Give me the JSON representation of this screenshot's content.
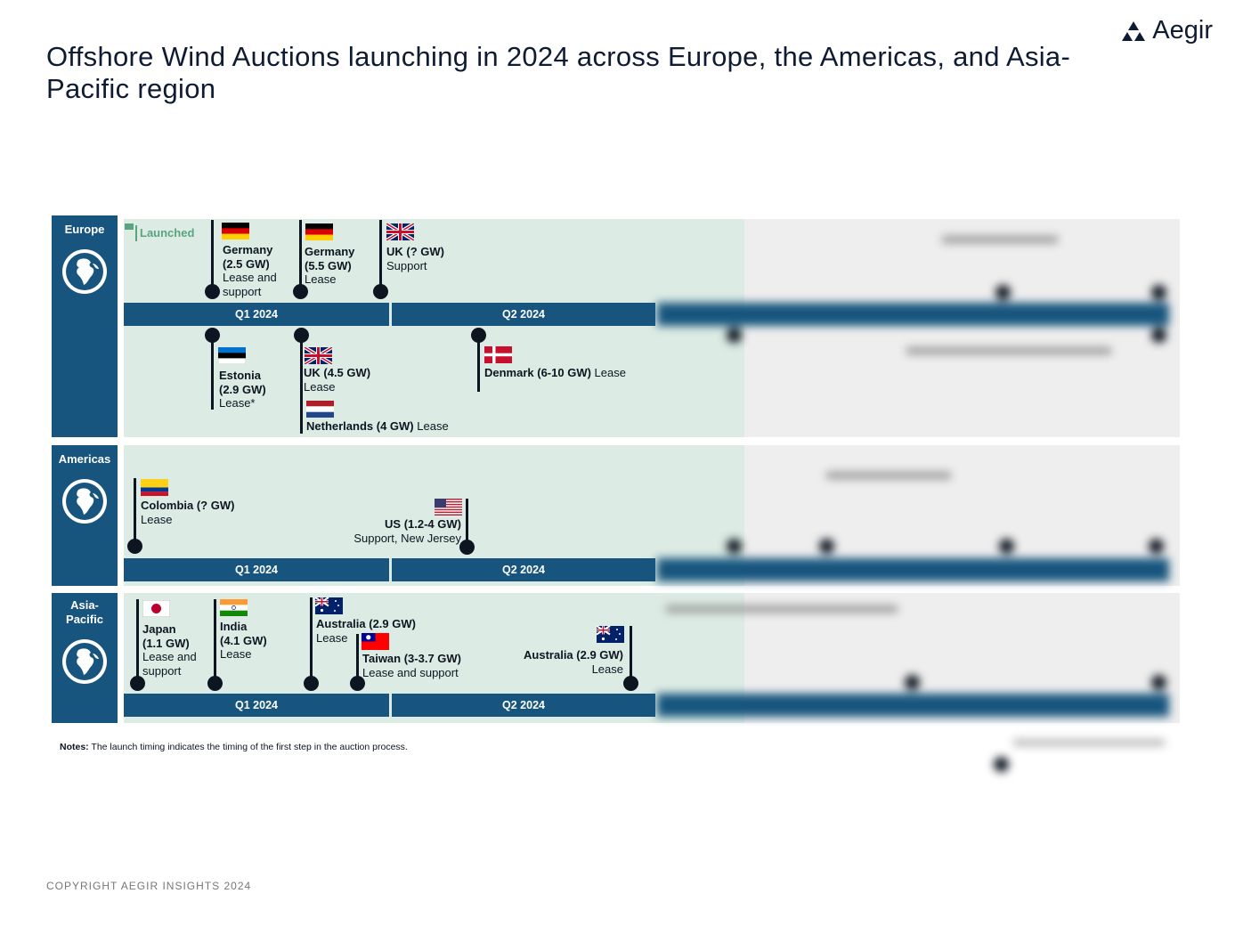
{
  "title": "Offshore Wind Auctions launching in 2024 across Europe, the Americas, and Asia-Pacific region",
  "logo": "Aegir",
  "legend": {
    "launched": "Launched",
    "color": "#5aa57f"
  },
  "colors": {
    "navy": "#17557e",
    "panel": "#dcebe4",
    "pin": "#0d1520"
  },
  "regions": {
    "europe": {
      "label": "Europe",
      "q1": "Q1 2024",
      "q2": "Q2 2024",
      "events": [
        {
          "flag": "germany",
          "name": "Germany",
          "cap": "(2.5 GW)",
          "type": "Lease and support"
        },
        {
          "flag": "germany",
          "name": "Germany",
          "cap": "(5.5 GW)",
          "type": "Lease"
        },
        {
          "flag": "uk",
          "name": "UK (? GW)",
          "type": "Support"
        },
        {
          "flag": "estonia",
          "name": "Estonia",
          "cap": "(2.9 GW)",
          "type": "Lease*"
        },
        {
          "flag": "uk",
          "name": "UK (4.5 GW)",
          "type": "Lease"
        },
        {
          "flag": "netherlands",
          "name": "Netherlands (4 GW)",
          "type": "Lease"
        },
        {
          "flag": "denmark",
          "name": "Denmark (6-10 GW)",
          "type": "Lease"
        }
      ]
    },
    "americas": {
      "label": "Americas",
      "q1": "Q1 2024",
      "q2": "Q2 2024",
      "events": [
        {
          "flag": "colombia",
          "name": "Colombia (? GW)",
          "type": "Lease"
        },
        {
          "flag": "us",
          "name": "US (1.2-4 GW)",
          "type": "Support, New Jersey"
        }
      ]
    },
    "asia": {
      "label": "Asia-Pacific",
      "q1": "Q1 2024",
      "q2": "Q2 2024",
      "events": [
        {
          "flag": "japan",
          "name": "Japan",
          "cap": "(1.1 GW)",
          "type": "Lease and support"
        },
        {
          "flag": "india",
          "name": "India",
          "cap": "(4.1 GW)",
          "type": "Lease"
        },
        {
          "flag": "australia",
          "name": "Australia (2.9 GW)",
          "type": "Lease"
        },
        {
          "flag": "taiwan",
          "name": "Taiwan (3-3.7 GW)",
          "type": "Lease and support"
        },
        {
          "flag": "australia",
          "name": "Australia (2.9 GW)",
          "type": "Lease"
        }
      ]
    }
  },
  "notes": {
    "label": "Notes:",
    "text": " The launch timing indicates the timing of the first step in the auction process."
  },
  "copyright": "COPYRIGHT AEGIR INSIGHTS 2024"
}
